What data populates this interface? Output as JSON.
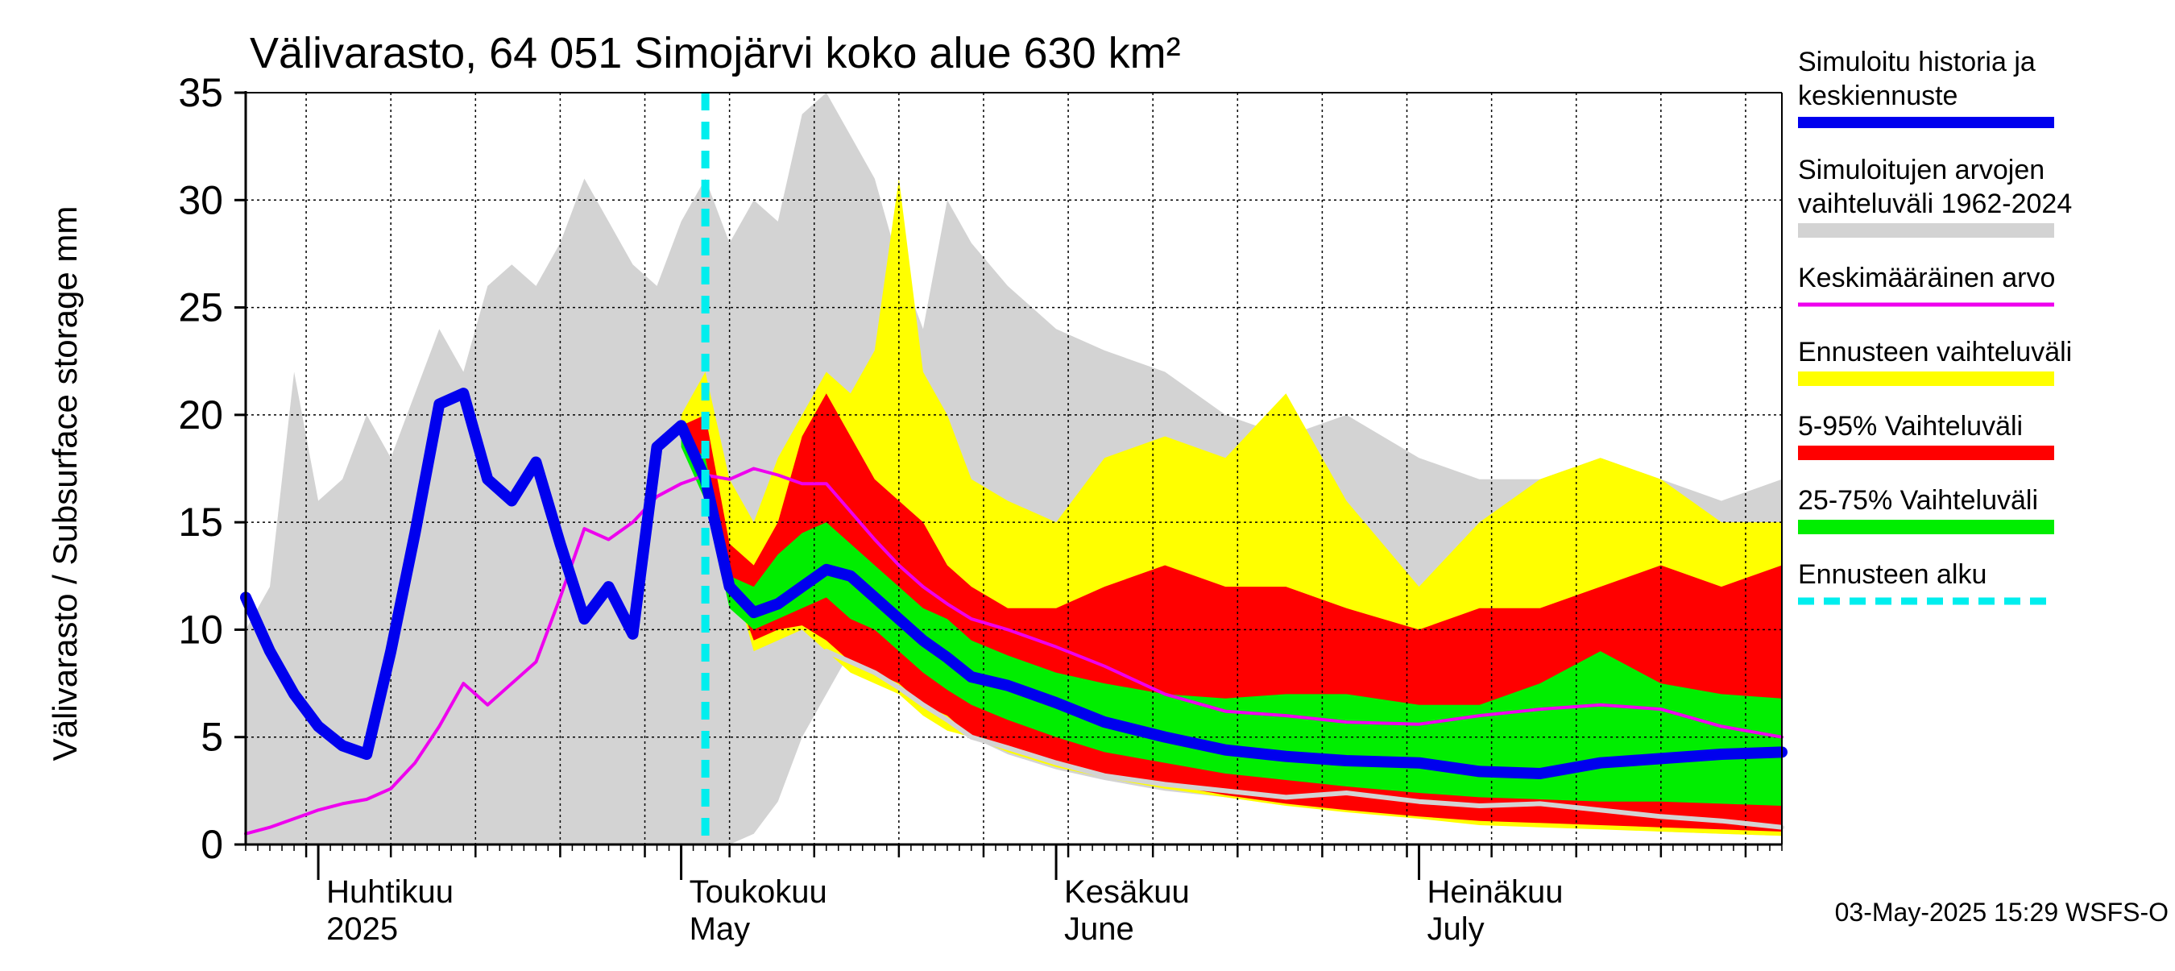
{
  "chart_data": {
    "type": "area",
    "title": "Välivarasto, 64 051 Simojärvi koko alue 630 km²",
    "xlabel": "",
    "ylabel": "Välivarasto / Subsurface storage  mm",
    "ylim": [
      0,
      35
    ],
    "yticks": [
      0,
      5,
      10,
      15,
      20,
      25,
      30,
      35
    ],
    "xlim": [
      "2025-03-26",
      "2025-07-31"
    ],
    "month_labels": [
      {
        "date": "2025-04-01",
        "fi": "Huhtikuu",
        "en": "2025"
      },
      {
        "date": "2025-05-01",
        "fi": "Toukokuu",
        "en": "May"
      },
      {
        "date": "2025-06-01",
        "fi": "Kesäkuu",
        "en": "June"
      },
      {
        "date": "2025-07-01",
        "fi": "Heinäkuu",
        "en": "July"
      }
    ],
    "grid": true,
    "legend_position": "right",
    "footer": "03-May-2025 15:29 WSFS-O",
    "forecast_start": "2025-05-03",
    "colors": {
      "history_range": "#d3d3d3",
      "forecast_range": "#ffff00",
      "p5_95": "#ff0000",
      "p25_75": "#00ee00",
      "median": "#0000ee",
      "mean": "#ee00ee",
      "forecast_start": "#00eeee",
      "low_line": "#d3d3d3"
    },
    "legend": [
      {
        "label": "Simuloitu historia ja keskiennuste",
        "lines": [
          "Simuloitu historia ja",
          "keskiennuste"
        ],
        "color": "#0000ee",
        "style": "thick"
      },
      {
        "label": "Simuloitujen arvojen vaihteluväli 1962-2024",
        "lines": [
          "Simuloitujen arvojen",
          "vaihteluväli 1962-2024"
        ],
        "color": "#d3d3d3",
        "style": "band"
      },
      {
        "label": "Keskimääräinen arvo",
        "lines": [
          "Keskimääräinen arvo"
        ],
        "color": "#ee00ee",
        "style": "thin"
      },
      {
        "label": "Ennusteen vaihteluväli",
        "lines": [
          "Ennusteen vaihteluväli"
        ],
        "color": "#ffff00",
        "style": "band"
      },
      {
        "label": "5-95% Vaihteluväli",
        "lines": [
          "5-95% Vaihteluväli"
        ],
        "color": "#ff0000",
        "style": "band"
      },
      {
        "label": "25-75% Vaihteluväli",
        "lines": [
          "25-75% Vaihteluväli"
        ],
        "color": "#00ee00",
        "style": "band"
      },
      {
        "label": "Ennusteen alku",
        "lines": [
          "Ennusteen alku"
        ],
        "color": "#00eeee",
        "style": "dashed"
      }
    ],
    "series": [
      {
        "name": "Simuloitujen arvojen vaihteluväli 1962-2024",
        "kind": "band",
        "x": [
          "2025-03-26",
          "2025-03-28",
          "2025-03-30",
          "2025-04-01",
          "2025-04-03",
          "2025-04-05",
          "2025-04-07",
          "2025-04-09",
          "2025-04-11",
          "2025-04-13",
          "2025-04-15",
          "2025-04-17",
          "2025-04-19",
          "2025-04-21",
          "2025-04-23",
          "2025-04-25",
          "2025-04-27",
          "2025-04-29",
          "2025-05-01",
          "2025-05-03",
          "2025-05-05",
          "2025-05-07",
          "2025-05-09",
          "2025-05-11",
          "2025-05-13",
          "2025-05-15",
          "2025-05-17",
          "2025-05-19",
          "2025-05-21",
          "2025-05-23",
          "2025-05-25",
          "2025-05-28",
          "2025-06-01",
          "2025-06-05",
          "2025-06-10",
          "2025-06-15",
          "2025-06-20",
          "2025-06-25",
          "2025-07-01",
          "2025-07-06",
          "2025-07-11",
          "2025-07-16",
          "2025-07-21",
          "2025-07-26",
          "2025-07-31"
        ],
        "low": [
          0,
          0,
          0,
          0,
          0,
          0,
          0,
          0,
          0,
          0,
          0,
          0,
          0,
          0,
          0,
          0,
          0,
          0,
          0,
          0,
          0,
          0.5,
          2,
          5,
          7,
          9,
          8.5,
          8,
          7.5,
          6,
          5,
          4.2,
          3.5,
          3,
          2.5,
          2.2,
          1.8,
          1.6,
          1.3,
          1.1,
          0.9,
          0.8,
          0.6,
          0.5,
          0.4
        ],
        "high": [
          10,
          12,
          22,
          16,
          17,
          20,
          18,
          21,
          24,
          22,
          26,
          27,
          26,
          28,
          31,
          29,
          27,
          26,
          29,
          31,
          28,
          30,
          29,
          34,
          35,
          33,
          31,
          27,
          24,
          30,
          28,
          26,
          24,
          23,
          22,
          20,
          19,
          20,
          18,
          17,
          17,
          18,
          17,
          16,
          17
        ]
      },
      {
        "name": "Ennusteen vaihteluväli",
        "kind": "band",
        "x": [
          "2025-05-01",
          "2025-05-03",
          "2025-05-05",
          "2025-05-07",
          "2025-05-09",
          "2025-05-11",
          "2025-05-13",
          "2025-05-15",
          "2025-05-17",
          "2025-05-19",
          "2025-05-21",
          "2025-05-23",
          "2025-05-25",
          "2025-05-28",
          "2025-06-01",
          "2025-06-05",
          "2025-06-10",
          "2025-06-15",
          "2025-06-20",
          "2025-06-25",
          "2025-07-01",
          "2025-07-06",
          "2025-07-11",
          "2025-07-16",
          "2025-07-21",
          "2025-07-26",
          "2025-07-31"
        ],
        "low": [
          19,
          18,
          13,
          9,
          9.5,
          10,
          9,
          8,
          7.5,
          7,
          6,
          5.3,
          5,
          4.3,
          3.6,
          3.1,
          2.6,
          2.2,
          1.8,
          1.5,
          1.2,
          0.9,
          0.8,
          0.7,
          0.6,
          0.5,
          0.4
        ],
        "high": [
          20,
          22,
          17,
          15,
          18,
          20,
          22,
          21,
          23,
          31,
          22,
          20,
          17,
          16,
          15,
          18,
          19,
          18,
          21,
          16,
          12,
          15,
          17,
          18,
          17,
          15,
          15
        ]
      },
      {
        "name": "5-95% Vaihteluväli",
        "kind": "band",
        "x": [
          "2025-05-01",
          "2025-05-03",
          "2025-05-05",
          "2025-05-07",
          "2025-05-09",
          "2025-05-11",
          "2025-05-13",
          "2025-05-15",
          "2025-05-17",
          "2025-05-19",
          "2025-05-21",
          "2025-05-23",
          "2025-05-25",
          "2025-05-28",
          "2025-06-01",
          "2025-06-05",
          "2025-06-10",
          "2025-06-15",
          "2025-06-20",
          "2025-06-25",
          "2025-07-01",
          "2025-07-06",
          "2025-07-11",
          "2025-07-16",
          "2025-07-21",
          "2025-07-26",
          "2025-07-31"
        ],
        "low": [
          19,
          18,
          12.5,
          9.5,
          10,
          10.2,
          9.5,
          8.5,
          8,
          7.5,
          6.5,
          6,
          5,
          4.5,
          3.8,
          3.3,
          2.8,
          2.3,
          1.9,
          1.6,
          1.3,
          1.1,
          1,
          0.9,
          0.8,
          0.7,
          0.6
        ],
        "high": [
          19.5,
          20,
          14,
          13,
          15,
          19,
          21,
          19,
          17,
          16,
          15,
          13,
          12,
          11,
          11,
          12,
          13,
          12,
          12,
          11,
          10,
          11,
          11,
          12,
          13,
          12,
          13
        ]
      },
      {
        "name": "25-75% Vaihteluväli",
        "kind": "band",
        "x": [
          "2025-05-01",
          "2025-05-03",
          "2025-05-05",
          "2025-05-07",
          "2025-05-09",
          "2025-05-11",
          "2025-05-13",
          "2025-05-15",
          "2025-05-17",
          "2025-05-19",
          "2025-05-21",
          "2025-05-23",
          "2025-05-25",
          "2025-05-28",
          "2025-06-01",
          "2025-06-05",
          "2025-06-10",
          "2025-06-15",
          "2025-06-20",
          "2025-06-25",
          "2025-07-01",
          "2025-07-06",
          "2025-07-11",
          "2025-07-16",
          "2025-07-21",
          "2025-07-26",
          "2025-07-31"
        ],
        "low": [
          18.5,
          16,
          11,
          10,
          10.5,
          11,
          11.5,
          10.5,
          10,
          9,
          8,
          7.2,
          6.5,
          5.8,
          5,
          4.3,
          3.8,
          3.3,
          3,
          2.7,
          2.4,
          2.2,
          2.1,
          2,
          2,
          1.9,
          1.8
        ],
        "high": [
          19,
          18,
          12.5,
          12,
          13.5,
          14.5,
          15,
          14,
          13,
          12,
          11,
          10.5,
          9.5,
          8.8,
          8,
          7.5,
          7,
          6.8,
          7,
          7,
          6.5,
          6.5,
          7.5,
          9,
          7.5,
          7,
          6.8
        ]
      },
      {
        "name": "low_line",
        "kind": "line",
        "x": [
          "2025-05-13",
          "2025-05-15",
          "2025-05-17",
          "2025-05-19",
          "2025-05-21",
          "2025-05-23",
          "2025-05-25",
          "2025-05-28",
          "2025-06-01",
          "2025-06-05",
          "2025-06-10",
          "2025-06-15",
          "2025-06-20",
          "2025-06-25",
          "2025-07-01",
          "2025-07-06",
          "2025-07-11",
          "2025-07-16",
          "2025-07-21",
          "2025-07-26",
          "2025-07-31"
        ],
        "values": [
          9,
          8.5,
          8,
          7.3,
          6.5,
          5.8,
          5,
          4.5,
          3.8,
          3.2,
          2.8,
          2.5,
          2.2,
          2.4,
          2,
          1.8,
          1.9,
          1.6,
          1.3,
          1.1,
          0.8
        ]
      },
      {
        "name": "Keskimääräinen arvo",
        "kind": "line",
        "x": [
          "2025-03-26",
          "2025-03-28",
          "2025-03-30",
          "2025-04-01",
          "2025-04-03",
          "2025-04-05",
          "2025-04-07",
          "2025-04-09",
          "2025-04-11",
          "2025-04-13",
          "2025-04-15",
          "2025-04-17",
          "2025-04-19",
          "2025-04-21",
          "2025-04-23",
          "2025-04-25",
          "2025-04-27",
          "2025-04-29",
          "2025-05-01",
          "2025-05-03",
          "2025-05-05",
          "2025-05-07",
          "2025-05-09",
          "2025-05-11",
          "2025-05-13",
          "2025-05-15",
          "2025-05-17",
          "2025-05-19",
          "2025-05-21",
          "2025-05-23",
          "2025-05-25",
          "2025-05-28",
          "2025-06-01",
          "2025-06-05",
          "2025-06-10",
          "2025-06-15",
          "2025-06-20",
          "2025-06-25",
          "2025-07-01",
          "2025-07-06",
          "2025-07-11",
          "2025-07-16",
          "2025-07-21",
          "2025-07-26",
          "2025-07-31"
        ],
        "values": [
          0.5,
          0.8,
          1.2,
          1.6,
          1.9,
          2.1,
          2.6,
          3.8,
          5.5,
          7.5,
          6.5,
          7.5,
          8.5,
          11.5,
          14.7,
          14.2,
          15,
          16.2,
          16.8,
          17.2,
          17,
          17.5,
          17.2,
          16.8,
          16.8,
          15.5,
          14.2,
          13,
          12,
          11.2,
          10.5,
          10,
          9.2,
          8.3,
          7,
          6.2,
          6,
          5.7,
          5.6,
          6,
          6.3,
          6.5,
          6.3,
          5.5,
          5
        ]
      },
      {
        "name": "Simuloitu historia ja keskiennuste",
        "kind": "line",
        "x": [
          "2025-03-26",
          "2025-03-28",
          "2025-03-30",
          "2025-04-01",
          "2025-04-03",
          "2025-04-05",
          "2025-04-07",
          "2025-04-09",
          "2025-04-11",
          "2025-04-13",
          "2025-04-15",
          "2025-04-17",
          "2025-04-19",
          "2025-04-21",
          "2025-04-23",
          "2025-04-25",
          "2025-04-27",
          "2025-04-29",
          "2025-05-01",
          "2025-05-03",
          "2025-05-05",
          "2025-05-07",
          "2025-05-09",
          "2025-05-11",
          "2025-05-13",
          "2025-05-15",
          "2025-05-17",
          "2025-05-19",
          "2025-05-21",
          "2025-05-23",
          "2025-05-25",
          "2025-05-28",
          "2025-06-01",
          "2025-06-05",
          "2025-06-10",
          "2025-06-15",
          "2025-06-20",
          "2025-06-25",
          "2025-07-01",
          "2025-07-06",
          "2025-07-11",
          "2025-07-16",
          "2025-07-21",
          "2025-07-26",
          "2025-07-31"
        ],
        "values": [
          11.5,
          9,
          7,
          5.5,
          4.6,
          4.2,
          9,
          14.5,
          20.5,
          21,
          17,
          16,
          17.8,
          14,
          10.5,
          12,
          9.8,
          18.5,
          19.5,
          17,
          12,
          10.8,
          11.2,
          12,
          12.8,
          12.5,
          11.5,
          10.5,
          9.5,
          8.7,
          7.8,
          7.4,
          6.6,
          5.7,
          5,
          4.4,
          4.1,
          3.9,
          3.8,
          3.4,
          3.3,
          3.8,
          4,
          4.2,
          4.3
        ]
      }
    ]
  }
}
